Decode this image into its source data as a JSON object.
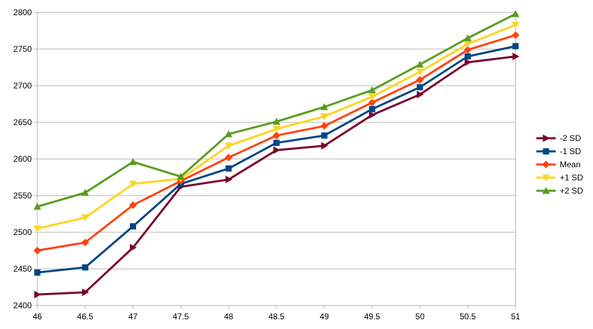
{
  "chart_data": {
    "type": "line",
    "title": "",
    "xlabel": "",
    "ylabel": "",
    "x": [
      46,
      46.5,
      47,
      47.5,
      48,
      48.5,
      49,
      49.5,
      50,
      50.5,
      51
    ],
    "x_tick_labels": [
      "46",
      "46.5",
      "47",
      "47.5",
      "48",
      "48.5",
      "49",
      "49.5",
      "50",
      "50.5",
      "51"
    ],
    "xlim": [
      46,
      51
    ],
    "ylim": [
      2400,
      2800
    ],
    "y_ticks": [
      2400,
      2450,
      2500,
      2550,
      2600,
      2650,
      2700,
      2750,
      2800
    ],
    "y_tick_labels": [
      "2400",
      "2450",
      "2500",
      "2550",
      "2600",
      "2650",
      "2700",
      "2750",
      "2800"
    ],
    "grid": "horizontal",
    "legend_position": "right",
    "series": [
      {
        "name": "-2 SD",
        "color": "#7b0030",
        "marker": "triangle-right",
        "values": [
          2415,
          2418,
          2479,
          2562,
          2572,
          2612,
          2618,
          2660,
          2688,
          2732,
          2740
        ]
      },
      {
        "name": "-1 SD",
        "color": "#004586",
        "marker": "square",
        "values": [
          2445,
          2452,
          2508,
          2566,
          2587,
          2622,
          2632,
          2668,
          2698,
          2740,
          2754
        ]
      },
      {
        "name": "Mean",
        "color": "#ff420e",
        "marker": "diamond",
        "values": [
          2475,
          2486,
          2537,
          2570,
          2602,
          2632,
          2645,
          2677,
          2708,
          2749,
          2769
        ]
      },
      {
        "name": "+1 SD",
        "color": "#ffd320",
        "marker": "triangle-down",
        "values": [
          2505,
          2520,
          2566,
          2573,
          2618,
          2641,
          2658,
          2685,
          2719,
          2757,
          2783
        ]
      },
      {
        "name": "+2 SD",
        "color": "#579d1c",
        "marker": "triangle-up",
        "values": [
          2535,
          2554,
          2596,
          2576,
          2634,
          2651,
          2671,
          2694,
          2729,
          2765,
          2798
        ]
      }
    ]
  }
}
